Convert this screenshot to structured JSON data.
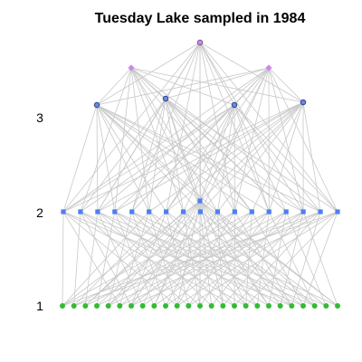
{
  "title": "Tuesday Lake sampled in 1984",
  "level_labels": [
    "3",
    "2",
    "1"
  ],
  "colors": {
    "edge": "#c8c8c8",
    "top": "#cc88ee",
    "consumer": "#6688ee",
    "consumer_stroke": "#223366",
    "mid": "#4c7ff0",
    "producer": "#33bb33"
  },
  "node_groups": {
    "top_predators": 3,
    "level3_consumers": 4,
    "level2_consumers": 17,
    "level2_raised": 1,
    "producers": 25
  }
}
